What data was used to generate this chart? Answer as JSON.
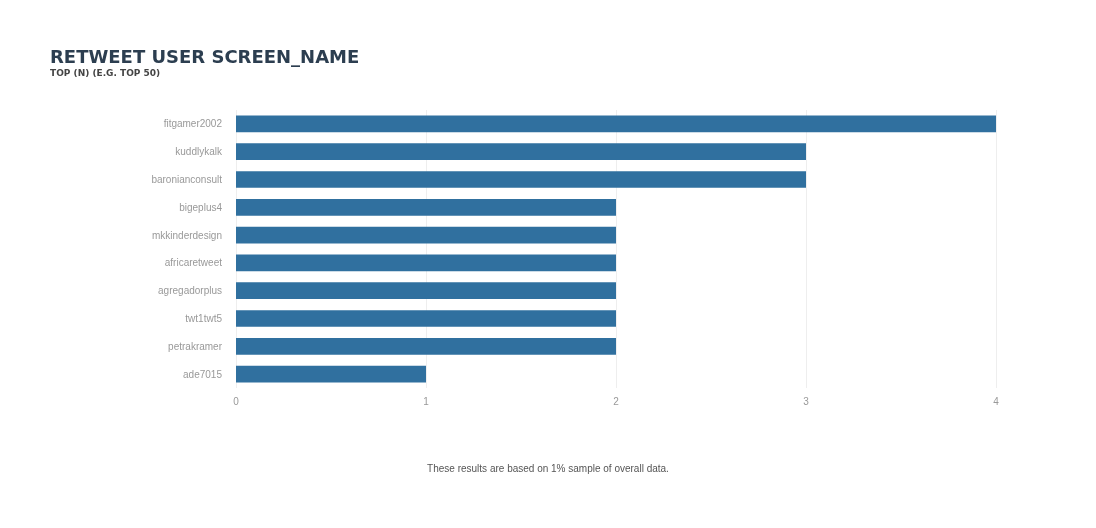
{
  "chart_data": {
    "type": "bar",
    "orientation": "horizontal",
    "title": "RETWEET USER SCREEN_NAME",
    "subtitle": "TOP (N) (E.G. TOP 50)",
    "categories": [
      "fitgamer2002",
      "kuddlykalk",
      "baronianconsult",
      "bigeplus4",
      "mkkinderdesign",
      "africaretweet",
      "agregadorplus",
      "twt1twt5",
      "petrakramer",
      "ade7015"
    ],
    "values": [
      4,
      3,
      3,
      2,
      2,
      2,
      2,
      2,
      2,
      1
    ],
    "color": "#30709f",
    "xlim": [
      0,
      4
    ],
    "xticks": [
      0,
      1,
      2,
      3,
      4
    ],
    "grid": "x",
    "annotations": [
      "These results are based on 1% sample of overall data."
    ]
  }
}
